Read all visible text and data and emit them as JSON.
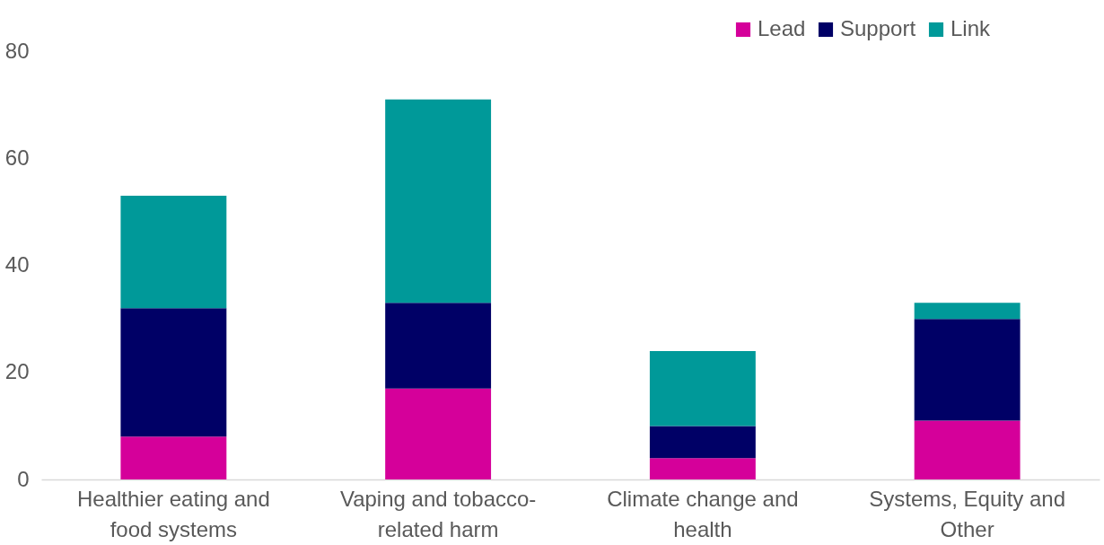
{
  "chart_data": {
    "type": "bar",
    "stacked": true,
    "categories": [
      "Healthier eating and food systems",
      "Vaping and tobacco-related harm",
      "Climate change and health",
      "Systems, Equity and Other"
    ],
    "series": [
      {
        "name": "Lead",
        "color": "#d5009a",
        "values": [
          8,
          17,
          4,
          11
        ]
      },
      {
        "name": "Support",
        "color": "#000066",
        "values": [
          24,
          16,
          6,
          19
        ]
      },
      {
        "name": "Link",
        "color": "#009999",
        "values": [
          21,
          38,
          14,
          3
        ]
      }
    ],
    "ylim": [
      0,
      80
    ],
    "yticks": [
      0,
      20,
      40,
      60,
      80
    ],
    "grid": false,
    "legend": "top right"
  }
}
